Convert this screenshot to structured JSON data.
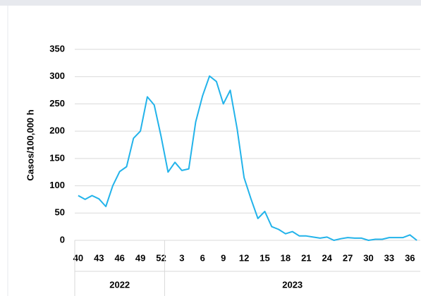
{
  "chart_data": {
    "type": "line",
    "y_label": "Casos/100,000 h",
    "categories": [
      40,
      null,
      null,
      43,
      null,
      null,
      46,
      null,
      null,
      49,
      null,
      null,
      52,
      null,
      null,
      3,
      null,
      null,
      6,
      null,
      null,
      9,
      null,
      null,
      12,
      null,
      null,
      15,
      null,
      null,
      18,
      null,
      null,
      21,
      null,
      null,
      24,
      null,
      null,
      27,
      null,
      null,
      30,
      null,
      null,
      33,
      null,
      null,
      36,
      null
    ],
    "x_groups": [
      {
        "label": "2022",
        "count": 13
      },
      {
        "label": "2023",
        "count": 37
      }
    ],
    "series": [
      {
        "name": "Casos",
        "color": "#22b3ea",
        "values": [
          82,
          75,
          82,
          76,
          62,
          100,
          126,
          135,
          187,
          200,
          263,
          248,
          190,
          125,
          143,
          128,
          131,
          217,
          265,
          301,
          291,
          250,
          275,
          204,
          115,
          76,
          40,
          53,
          25,
          20,
          12,
          16,
          8,
          8,
          6,
          4,
          6,
          0,
          3,
          5,
          4,
          4,
          0,
          2,
          2,
          5,
          5,
          5,
          10,
          0
        ]
      }
    ],
    "ylim": [
      0,
      350
    ],
    "yticks": [
      0,
      50,
      100,
      150,
      200,
      250,
      300,
      350
    ],
    "grid": true
  }
}
